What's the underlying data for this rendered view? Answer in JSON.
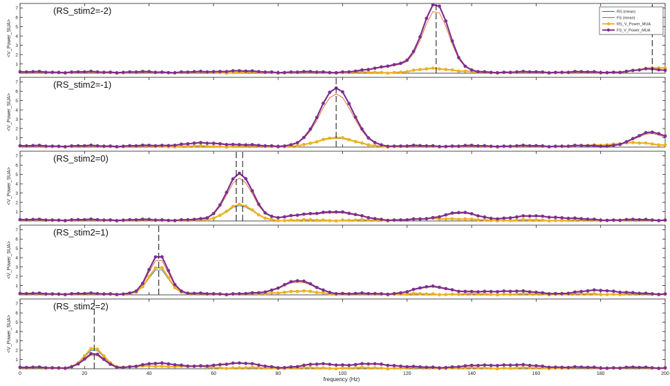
{
  "figure": {
    "xlabel": "frequency (Hz)",
    "legend": {
      "placement": "top-right",
      "entries": [
        {
          "label": "RS (mean)",
          "color": "#0072BD",
          "style": "line"
        },
        {
          "label": "FS (mean)",
          "color": "#D95319",
          "style": "line"
        },
        {
          "label": "RS_V_Power_MUA",
          "color": "#EDB120",
          "style": "line-marker"
        },
        {
          "label": "FS_V_Power_MUA",
          "color": "#7E2F8E",
          "style": "line-marker"
        }
      ]
    }
  },
  "chart_data": [
    {
      "type": "line",
      "title": "(RS_stim2=-2)",
      "ylabel": "<V_Power_SUA>",
      "xlim": [
        0,
        200
      ],
      "ylim": [
        0,
        7.5
      ],
      "xticks": [
        0,
        20,
        40,
        60,
        80,
        100,
        120,
        140,
        160,
        180,
        200
      ],
      "yticks": [
        1,
        2,
        3,
        4,
        5,
        6,
        7
      ],
      "show_xticklabels": false,
      "peak_markers": [
        129,
        196
      ],
      "rs_peaks": [
        [
          129,
          0.45,
          5
        ],
        [
          198,
          0.55,
          5
        ]
      ],
      "fs_peaks": [
        [
          129,
          7.3,
          4
        ],
        [
          117,
          0.8,
          6
        ],
        [
          66,
          0.15,
          4
        ],
        [
          196,
          0.35,
          4
        ]
      ],
      "series": [
        {
          "name": "RS_V_Power_MUA",
          "color": "#EDB120"
        },
        {
          "name": "FS_V_Power_MUA",
          "color": "#7E2F8E"
        }
      ]
    },
    {
      "type": "line",
      "title": "(RS_stim2=-1)",
      "ylabel": "<V_Power_SUA>",
      "xlim": [
        0,
        200
      ],
      "ylim": [
        0,
        7.5
      ],
      "xticks": [
        0,
        20,
        40,
        60,
        80,
        100,
        120,
        140,
        160,
        180,
        200
      ],
      "yticks": [
        1,
        2,
        3,
        4,
        5,
        6,
        7
      ],
      "show_xticklabels": false,
      "peak_markers": [
        98
      ],
      "rs_peaks": [
        [
          98,
          1.0,
          5
        ],
        [
          190,
          0.35,
          8
        ]
      ],
      "fs_peaks": [
        [
          98,
          6.3,
          5
        ],
        [
          58,
          0.3,
          8
        ],
        [
          196,
          1.5,
          5
        ]
      ],
      "series": [
        {
          "name": "RS_V_Power_MUA",
          "color": "#EDB120"
        },
        {
          "name": "FS_V_Power_MUA",
          "color": "#7E2F8E"
        }
      ]
    },
    {
      "type": "line",
      "title": "(RS_stim2=0)",
      "ylabel": "<V_Power_SUA>",
      "xlim": [
        0,
        200
      ],
      "ylim": [
        0,
        7.5
      ],
      "xticks": [
        0,
        20,
        40,
        60,
        80,
        100,
        120,
        140,
        160,
        180,
        200
      ],
      "yticks": [
        1,
        2,
        3,
        4,
        5,
        6,
        7
      ],
      "show_xticklabels": false,
      "peak_markers": [
        67,
        69
      ],
      "rs_peaks": [
        [
          68,
          1.7,
          4
        ],
        [
          130,
          0.2,
          6
        ]
      ],
      "fs_peaks": [
        [
          68,
          5.0,
          4
        ],
        [
          98,
          0.9,
          6
        ],
        [
          136,
          0.8,
          5
        ],
        [
          85,
          0.4,
          5
        ],
        [
          160,
          0.4,
          8
        ]
      ],
      "series": [
        {
          "name": "RS_V_Power_MUA",
          "color": "#EDB120"
        },
        {
          "name": "FS_V_Power_MUA",
          "color": "#7E2F8E"
        }
      ]
    },
    {
      "type": "line",
      "title": "(RS_stim2=1)",
      "ylabel": "<V_Power_SUA>",
      "xlim": [
        0,
        200
      ],
      "ylim": [
        0,
        7.5
      ],
      "xticks": [
        0,
        20,
        40,
        60,
        80,
        100,
        120,
        140,
        160,
        180,
        200
      ],
      "yticks": [
        1,
        2,
        3,
        4,
        5,
        6,
        7
      ],
      "show_xticklabels": false,
      "peak_markers": [
        43
      ],
      "rs_peaks": [
        [
          43,
          3.0,
          3
        ],
        [
          86,
          0.3,
          6
        ]
      ],
      "fs_peaks": [
        [
          43,
          4.2,
          3
        ],
        [
          86,
          1.4,
          5
        ],
        [
          128,
          0.8,
          5
        ],
        [
          150,
          0.3,
          8
        ],
        [
          180,
          0.4,
          5
        ]
      ],
      "series": [
        {
          "name": "RS_V_Power_MUA",
          "color": "#EDB120"
        },
        {
          "name": "FS_V_Power_MUA",
          "color": "#7E2F8E"
        }
      ]
    },
    {
      "type": "line",
      "title": "(RS_stim2=2)",
      "ylabel": "<V_Power_SUA>",
      "xlim": [
        0,
        200
      ],
      "ylim": [
        0,
        7.5
      ],
      "xticks": [
        0,
        20,
        40,
        60,
        80,
        100,
        120,
        140,
        160,
        180,
        200
      ],
      "yticks": [
        1,
        2,
        3,
        4,
        5,
        6,
        7
      ],
      "show_xticklabels": true,
      "peak_markers": [
        23
      ],
      "rs_peaks": [
        [
          23,
          2.1,
          3
        ],
        [
          45,
          0.2,
          10
        ]
      ],
      "fs_peaks": [
        [
          23,
          1.5,
          3
        ],
        [
          44,
          0.5,
          5
        ],
        [
          67,
          0.5,
          6
        ],
        [
          94,
          0.4,
          5
        ],
        [
          110,
          0.4,
          6
        ],
        [
          150,
          0.3,
          10
        ]
      ],
      "series": [
        {
          "name": "RS_V_Power_MUA",
          "color": "#EDB120"
        },
        {
          "name": "FS_V_Power_MUA",
          "color": "#7E2F8E"
        }
      ]
    }
  ]
}
